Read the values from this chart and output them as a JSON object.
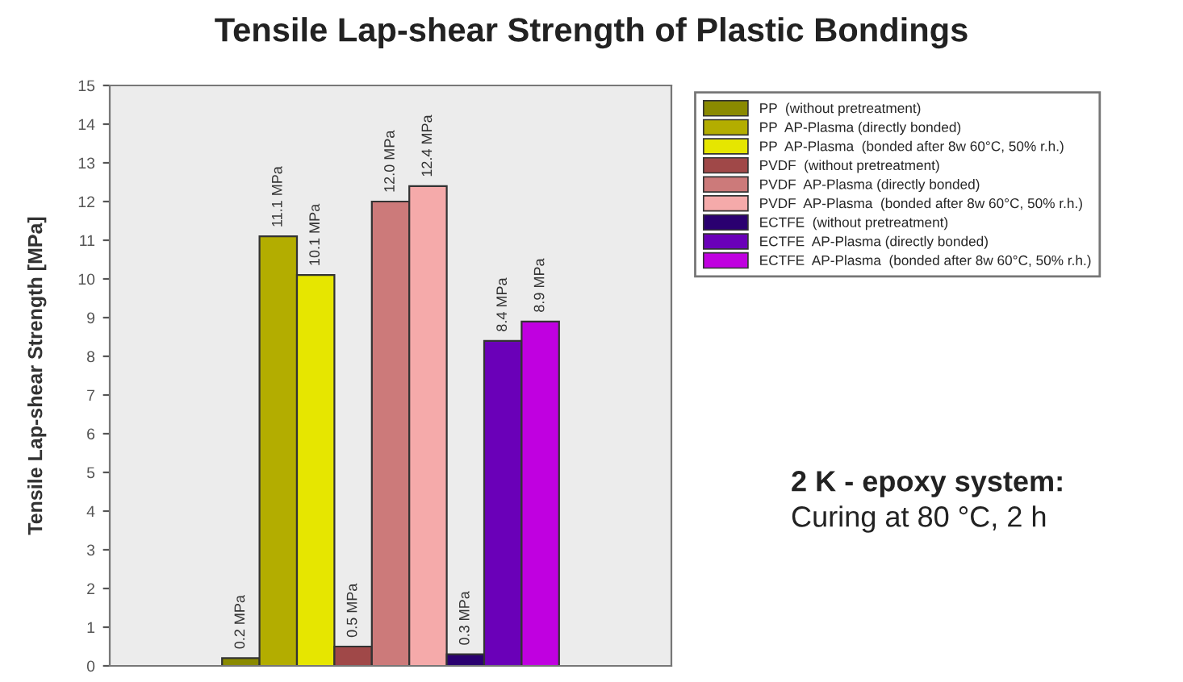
{
  "chart_data": {
    "type": "bar",
    "title": "Tensile Lap-shear Strength of Plastic Bondings",
    "ylabel": "Tensile Lap-shear Strength [MPa]",
    "categories": [
      null
    ],
    "series": [
      {
        "name": "PP  (without pretreatment)",
        "color": "#8a8a00",
        "values": [
          0.2
        ],
        "value_labels": [
          "0.2 MPa"
        ]
      },
      {
        "name": "PP  AP-Plasma (directly bonded)",
        "color": "#b3ad00",
        "values": [
          11.1
        ],
        "value_labels": [
          "11.1 MPa"
        ]
      },
      {
        "name": "PP  AP-Plasma  (bonded after 8w 60°C, 50% r.h.)",
        "color": "#e6e600",
        "values": [
          10.1
        ],
        "value_labels": [
          "10.1 MPa"
        ]
      },
      {
        "name": "PVDF  (without pretreatment)",
        "color": "#a04848",
        "values": [
          0.5
        ],
        "value_labels": [
          "0.5 MPa"
        ]
      },
      {
        "name": "PVDF  AP-Plasma (directly bonded)",
        "color": "#cc7a7a",
        "values": [
          12.0
        ],
        "value_labels": [
          "12.0 MPa"
        ]
      },
      {
        "name": "PVDF  AP-Plasma  (bonded after 8w 60°C, 50% r.h.)",
        "color": "#f5aaaa",
        "values": [
          12.4
        ],
        "value_labels": [
          "12.4 MPa"
        ]
      },
      {
        "name": "ECTFE  (without pretreatment)",
        "color": "#2a0070",
        "values": [
          0.3
        ],
        "value_labels": [
          "0.3 MPa"
        ]
      },
      {
        "name": "ECTFE  AP-Plasma (directly bonded)",
        "color": "#6a00b8",
        "values": [
          8.4
        ],
        "value_labels": [
          "8.4 MPa"
        ]
      },
      {
        "name": "ECTFE  AP-Plasma  (bonded after 8w 60°C, 50% r.h.)",
        "color": "#c000e0",
        "values": [
          8.9
        ],
        "value_labels": [
          "8.9 MPa"
        ]
      }
    ],
    "ylim": [
      0,
      15
    ],
    "yticks": [
      0,
      1,
      2,
      3,
      4,
      5,
      6,
      7,
      8,
      9,
      10,
      11,
      12,
      13,
      14,
      15
    ],
    "grid": false,
    "legend": "right",
    "annotations": [
      "2 K - epoxy system:",
      "Curing at 80 °C, 2 h"
    ]
  }
}
